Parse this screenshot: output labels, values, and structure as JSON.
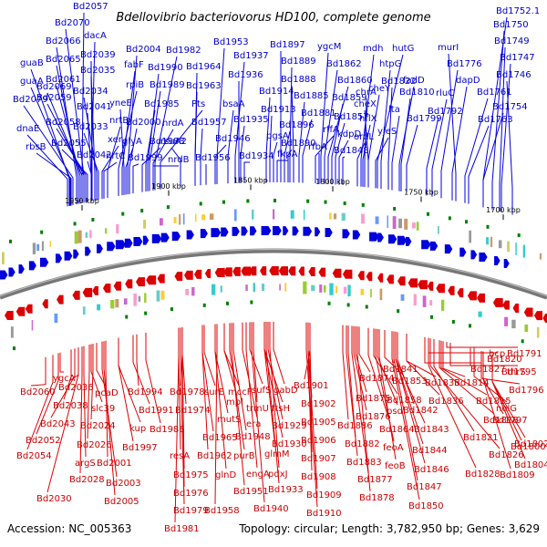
{
  "title": "Bdellovibrio bacteriovorus HD100, complete genome",
  "footer": {
    "accession": "Accession: NC_005363",
    "summary": "Topology: circular; Length: 3,782,950 bp; Genes: 3,629"
  },
  "colors": {
    "forward": "#0000dd",
    "reverse": "#dd0000",
    "backbone": "#777777",
    "tick": "#008000"
  },
  "ticks": [
    {
      "label": "1950 kbp"
    },
    {
      "label": "1900 kbp"
    },
    {
      "label": "1850 kbp"
    },
    {
      "label": "1800 kbp"
    },
    {
      "label": "1750 kbp"
    },
    {
      "label": "1700 kbp"
    }
  ],
  "forward_labels": [
    {
      "text": "Bd2057",
      "anchor": 90
    },
    {
      "text": "Bd2070",
      "anchor": 92
    },
    {
      "text": "dacA",
      "anchor": 100
    },
    {
      "text": "Bd2066",
      "anchor": 84
    },
    {
      "text": "Bd2039",
      "anchor": 101
    },
    {
      "text": "guaB",
      "anchor": 76
    },
    {
      "text": "Bd2065",
      "anchor": 86
    },
    {
      "text": "Bd2035",
      "anchor": 104
    },
    {
      "text": "guaA",
      "anchor": 77
    },
    {
      "text": "Bd2061",
      "anchor": 88
    },
    {
      "text": "Bd2079",
      "anchor": 80
    },
    {
      "text": "Bd2069",
      "anchor": 90
    },
    {
      "text": "Bd2034",
      "anchor": 106
    },
    {
      "text": "Bd2059",
      "anchor": 92
    },
    {
      "text": "Bd2041",
      "anchor": 100
    },
    {
      "text": "dnaE",
      "anchor": 74
    },
    {
      "text": "Bd2058",
      "anchor": 94
    },
    {
      "text": "Bd2033",
      "anchor": 108
    },
    {
      "text": "xer",
      "anchor": 112
    },
    {
      "text": "rbsB",
      "anchor": 78
    },
    {
      "text": "Bd2055",
      "anchor": 96
    },
    {
      "text": "Bd2042",
      "anchor": 100
    },
    {
      "text": "nrtC",
      "anchor": 114
    },
    {
      "text": "Bd2004",
      "anchor": 140
    },
    {
      "text": "Bd1982",
      "anchor": 170
    },
    {
      "text": "fabF",
      "anchor": 134
    },
    {
      "text": "Bd1990",
      "anchor": 162
    },
    {
      "text": "rpiB",
      "anchor": 130
    },
    {
      "text": "Bd1989",
      "anchor": 164
    },
    {
      "text": "yneE",
      "anchor": 136
    },
    {
      "text": "Bd1985",
      "anchor": 160
    },
    {
      "text": "Pts",
      "anchor": 176
    },
    {
      "text": "nrtB",
      "anchor": 118
    },
    {
      "text": "Bd2000",
      "anchor": 142
    },
    {
      "text": "nrdA",
      "anchor": 168
    },
    {
      "text": "glyA",
      "anchor": 138
    },
    {
      "text": "Bd1988",
      "anchor": 156
    },
    {
      "text": "Bd1999",
      "anchor": 146
    },
    {
      "text": "nrdB",
      "anchor": 168
    },
    {
      "text": "Bd1953",
      "anchor": 238
    },
    {
      "text": "Bd1937",
      "anchor": 258
    },
    {
      "text": "Bd1964",
      "anchor": 214
    },
    {
      "text": "Bd1936",
      "anchor": 262
    },
    {
      "text": "Bd1963",
      "anchor": 214
    },
    {
      "text": "bsaA",
      "anchor": 250
    },
    {
      "text": "Bd1957",
      "anchor": 220
    },
    {
      "text": "Bd1935",
      "anchor": 264
    },
    {
      "text": "rsuA2",
      "anchor": 198
    },
    {
      "text": "Bd1946",
      "anchor": 236
    },
    {
      "text": "Bd1956",
      "anchor": 226
    },
    {
      "text": "Bd1934",
      "anchor": 268
    },
    {
      "text": "Bd1897",
      "anchor": 308
    },
    {
      "text": "ygcM",
      "anchor": 352
    },
    {
      "text": "Bd1889",
      "anchor": 318
    },
    {
      "text": "Bd1862",
      "anchor": 356
    },
    {
      "text": "Bd1888",
      "anchor": 322
    },
    {
      "text": "Bd1860",
      "anchor": 360
    },
    {
      "text": "Bd1914",
      "anchor": 292
    },
    {
      "text": "Bd1885",
      "anchor": 328
    },
    {
      "text": "Bd1859",
      "anchor": 364
    },
    {
      "text": "Bd1913",
      "anchor": 296
    },
    {
      "text": "Bd1881",
      "anchor": 332
    },
    {
      "text": "Bd1896",
      "anchor": 312
    },
    {
      "text": "Bd1857",
      "anchor": 368
    },
    {
      "text": "pgsA",
      "anchor": 300
    },
    {
      "text": "rffA",
      "anchor": 346
    },
    {
      "text": "Bd1890",
      "anchor": 316
    },
    {
      "text": "kdpD",
      "anchor": 372
    },
    {
      "text": "fkpA",
      "anchor": 304
    },
    {
      "text": "rfbA",
      "anchor": 350
    },
    {
      "text": "Bd1848",
      "anchor": 376
    },
    {
      "text": "mdh",
      "anchor": 396
    },
    {
      "text": "hutG",
      "anchor": 414
    },
    {
      "text": "cheY",
      "anchor": 404
    },
    {
      "text": "htpG",
      "anchor": 418
    },
    {
      "text": "Bd1822",
      "anchor": 426
    },
    {
      "text": "fadD",
      "anchor": 438
    },
    {
      "text": "chrA",
      "anchor": 400
    },
    {
      "text": "Bd1810",
      "anchor": 440
    },
    {
      "text": "cheX",
      "anchor": 404
    },
    {
      "text": "lta",
      "anchor": 430
    },
    {
      "text": "hflX",
      "anchor": 398
    },
    {
      "text": "ordL",
      "anchor": 392
    },
    {
      "text": "yjeS",
      "anchor": 412
    },
    {
      "text": "Bd1799",
      "anchor": 446
    },
    {
      "text": "Bd1752.1",
      "anchor": 530
    },
    {
      "text": "Bd1750",
      "anchor": 540
    },
    {
      "text": "murI",
      "anchor": 500
    },
    {
      "text": "Bd1749",
      "anchor": 548
    },
    {
      "text": "Bd1776",
      "anchor": 484
    },
    {
      "text": "Bd1747",
      "anchor": 550
    },
    {
      "text": "dapD",
      "anchor": 496
    },
    {
      "text": "Bd1746",
      "anchor": 562
    },
    {
      "text": "rluC",
      "anchor": 474
    },
    {
      "text": "Bd1761",
      "anchor": 510
    },
    {
      "text": "Bd1792",
      "anchor": 468
    },
    {
      "text": "Bd1754",
      "anchor": 530
    },
    {
      "text": "Bd1763",
      "anchor": 514
    }
  ],
  "reverse_labels": [
    {
      "text": "ygcA",
      "anchor": 66
    },
    {
      "text": "Bd2060",
      "anchor": 50
    },
    {
      "text": "Bd2036",
      "anchor": 86
    },
    {
      "text": "pcaD",
      "anchor": 106
    },
    {
      "text": "Bd2038",
      "anchor": 78
    },
    {
      "text": "slc39",
      "anchor": 100
    },
    {
      "text": "Bd2043",
      "anchor": 82
    },
    {
      "text": "Bd2024",
      "anchor": 102
    },
    {
      "text": "Bd2052",
      "anchor": 64
    },
    {
      "text": "Bd2026",
      "anchor": 98
    },
    {
      "text": "argS",
      "anchor": 92
    },
    {
      "text": "Bd2054",
      "anchor": 58
    },
    {
      "text": "Bd2028",
      "anchor": 90
    },
    {
      "text": "Bd2030",
      "anchor": 86
    },
    {
      "text": "Bd2001",
      "anchor": 116
    },
    {
      "text": "Bd2003",
      "anchor": 112
    },
    {
      "text": "Bd2005",
      "anchor": 114
    },
    {
      "text": "Bd1994",
      "anchor": 150
    },
    {
      "text": "Bd1991",
      "anchor": 146
    },
    {
      "text": "kup",
      "anchor": 130
    },
    {
      "text": "Bd1986",
      "anchor": 160
    },
    {
      "text": "Bd1997",
      "anchor": 130
    },
    {
      "text": "Bd1978",
      "anchor": 200
    },
    {
      "text": "Bd1974",
      "anchor": 200
    },
    {
      "text": "resA",
      "anchor": 196
    },
    {
      "text": "Bd1975",
      "anchor": 200
    },
    {
      "text": "Bd1976",
      "anchor": 200
    },
    {
      "text": "Bd1979",
      "anchor": 198
    },
    {
      "text": "Bd1981",
      "anchor": 196
    },
    {
      "text": "surE",
      "anchor": 224
    },
    {
      "text": "mccF",
      "anchor": 246
    },
    {
      "text": "mpl",
      "anchor": 246
    },
    {
      "text": "mutS",
      "anchor": 236
    },
    {
      "text": "Bd1965",
      "anchor": 222
    },
    {
      "text": "Bd1948",
      "anchor": 256
    },
    {
      "text": "Bd1962",
      "anchor": 222
    },
    {
      "text": "purB",
      "anchor": 252
    },
    {
      "text": "glnD",
      "anchor": 236
    },
    {
      "text": "Bd1951",
      "anchor": 254
    },
    {
      "text": "Bd1958",
      "anchor": 238
    },
    {
      "text": "sufS",
      "anchor": 274
    },
    {
      "text": "gabD",
      "anchor": 300
    },
    {
      "text": "trmU",
      "anchor": 278
    },
    {
      "text": "ftsH",
      "anchor": 290
    },
    {
      "text": "era",
      "anchor": 266
    },
    {
      "text": "Bd1929",
      "anchor": 294
    },
    {
      "text": "Bd1930",
      "anchor": 290
    },
    {
      "text": "glmM",
      "anchor": 290
    },
    {
      "text": "engA",
      "anchor": 270
    },
    {
      "text": "pdxJ",
      "anchor": 296
    },
    {
      "text": "Bd1933",
      "anchor": 292
    },
    {
      "text": "Bd1940",
      "anchor": 276
    },
    {
      "text": "Bd1901",
      "anchor": 340
    },
    {
      "text": "Bd1902",
      "anchor": 338
    },
    {
      "text": "Bd1905",
      "anchor": 340
    },
    {
      "text": "Bd1906",
      "anchor": 340
    },
    {
      "text": "Bd1907",
      "anchor": 340
    },
    {
      "text": "Bd1908",
      "anchor": 338
    },
    {
      "text": "Bd1909",
      "anchor": 338
    },
    {
      "text": "Bd1910",
      "anchor": 336
    },
    {
      "text": "Bd1874",
      "anchor": 394
    },
    {
      "text": "Bd1875",
      "anchor": 390
    },
    {
      "text": "Bd1858",
      "anchor": 410
    },
    {
      "text": "Bd1876",
      "anchor": 388
    },
    {
      "text": "Bd1886",
      "anchor": 376
    },
    {
      "text": "Bd1864",
      "anchor": 404
    },
    {
      "text": "Bd1882",
      "anchor": 382
    },
    {
      "text": "Bd1883",
      "anchor": 380
    },
    {
      "text": "Bd1877",
      "anchor": 386
    },
    {
      "text": "Bd1878",
      "anchor": 392
    },
    {
      "text": "psd",
      "anchor": 414
    },
    {
      "text": "feoA",
      "anchor": 412
    },
    {
      "text": "feoB",
      "anchor": 416
    },
    {
      "text": "Bd1841",
      "anchor": 432
    },
    {
      "text": "Bd1853",
      "anchor": 422
    },
    {
      "text": "Bd1835",
      "anchor": 446
    },
    {
      "text": "Bd1836",
      "anchor": 446
    },
    {
      "text": "Bd1842",
      "anchor": 436
    },
    {
      "text": "Bd1843",
      "anchor": 434
    },
    {
      "text": "Bd1844",
      "anchor": 434
    },
    {
      "text": "Bd1846",
      "anchor": 434
    },
    {
      "text": "Bd1847",
      "anchor": 432
    },
    {
      "text": "Bd1850",
      "anchor": 430
    },
    {
      "text": "Bd1820",
      "anchor": 470
    },
    {
      "text": "bcp",
      "anchor": 490
    },
    {
      "text": "Bd1791",
      "anchor": 520
    },
    {
      "text": "Bd1827",
      "anchor": 466
    },
    {
      "text": "thrS",
      "anchor": 494
    },
    {
      "text": "Bd1795",
      "anchor": 516
    },
    {
      "text": "Bd1814",
      "anchor": 486
    },
    {
      "text": "Bd1796",
      "anchor": 528
    },
    {
      "text": "Bd1815",
      "anchor": 484
    },
    {
      "text": "nolG",
      "anchor": 520
    },
    {
      "text": "Bd1818",
      "anchor": 482
    },
    {
      "text": "Bd1797",
      "anchor": 530
    },
    {
      "text": "Bd1821",
      "anchor": 476
    },
    {
      "text": "Bd1800",
      "anchor": 540
    },
    {
      "text": "Bd1826",
      "anchor": 472
    },
    {
      "text": "Bd1802",
      "anchor": 540
    },
    {
      "text": "Bd1804",
      "anchor": 540
    },
    {
      "text": "Bd1828",
      "anchor": 470
    },
    {
      "text": "Bd1809",
      "anchor": 530
    }
  ]
}
